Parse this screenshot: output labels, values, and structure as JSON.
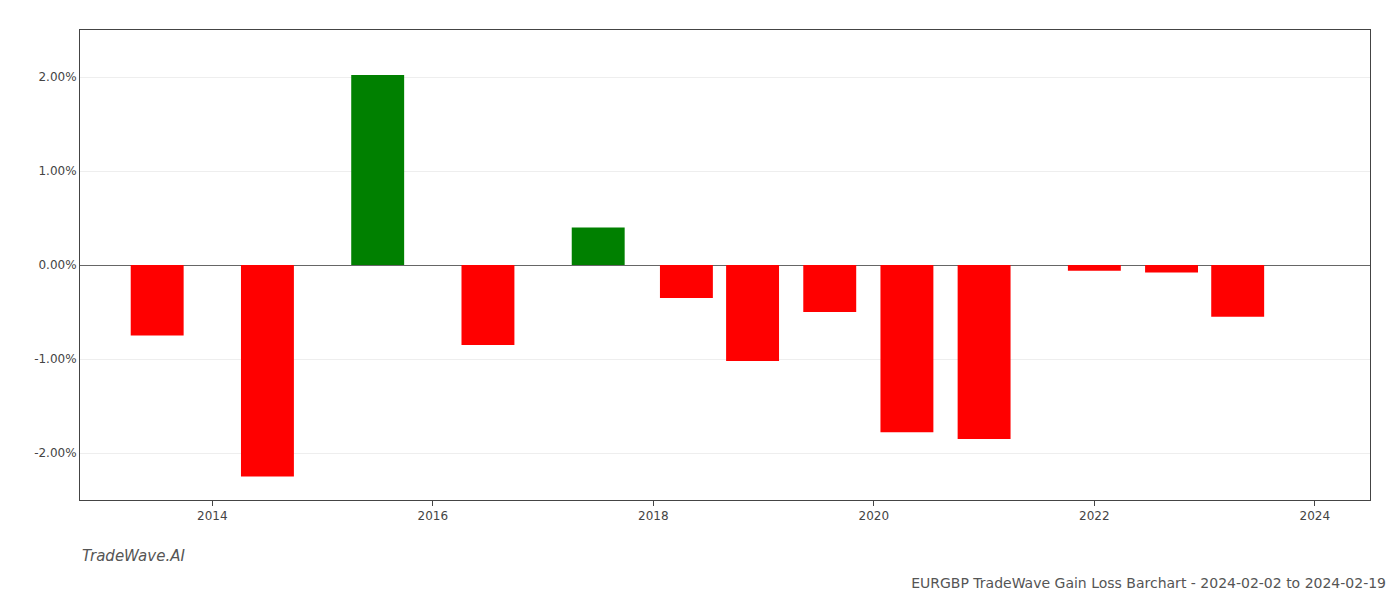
{
  "chart_data": {
    "type": "bar",
    "title": "EURGBP TradeWave Gain Loss Barchart - 2024-02-02 to 2024-02-19",
    "x": [
      2013.5,
      2014.5,
      2015.5,
      2016.5,
      2017.5,
      2018.3,
      2018.9,
      2019.6,
      2020.3,
      2021.0,
      2022.0,
      2022.7,
      2023.3
    ],
    "values": [
      -0.75,
      -2.25,
      2.02,
      -0.85,
      0.4,
      -0.35,
      -1.02,
      -0.5,
      -1.78,
      -1.85,
      -0.06,
      -0.08,
      -0.55
    ],
    "colors": [
      "#ff0000",
      "#ff0000",
      "#008000",
      "#ff0000",
      "#008000",
      "#ff0000",
      "#ff0000",
      "#ff0000",
      "#ff0000",
      "#ff0000",
      "#ff0000",
      "#ff0000",
      "#ff0000"
    ],
    "xlim": [
      2012.8,
      2024.5
    ],
    "xticks": [
      2014,
      2016,
      2018,
      2020,
      2022,
      2024
    ],
    "ylim": [
      -2.5,
      2.5
    ],
    "yticks": [
      {
        "value": -2.0,
        "label": "-2.00%"
      },
      {
        "value": -1.0,
        "label": "-1.00%"
      },
      {
        "value": 0.0,
        "label": "0.00%"
      },
      {
        "value": 1.0,
        "label": "1.00%"
      },
      {
        "value": 2.0,
        "label": "2.00%"
      }
    ],
    "grid": true,
    "annotations": [
      "TradeWave.AI"
    ]
  }
}
